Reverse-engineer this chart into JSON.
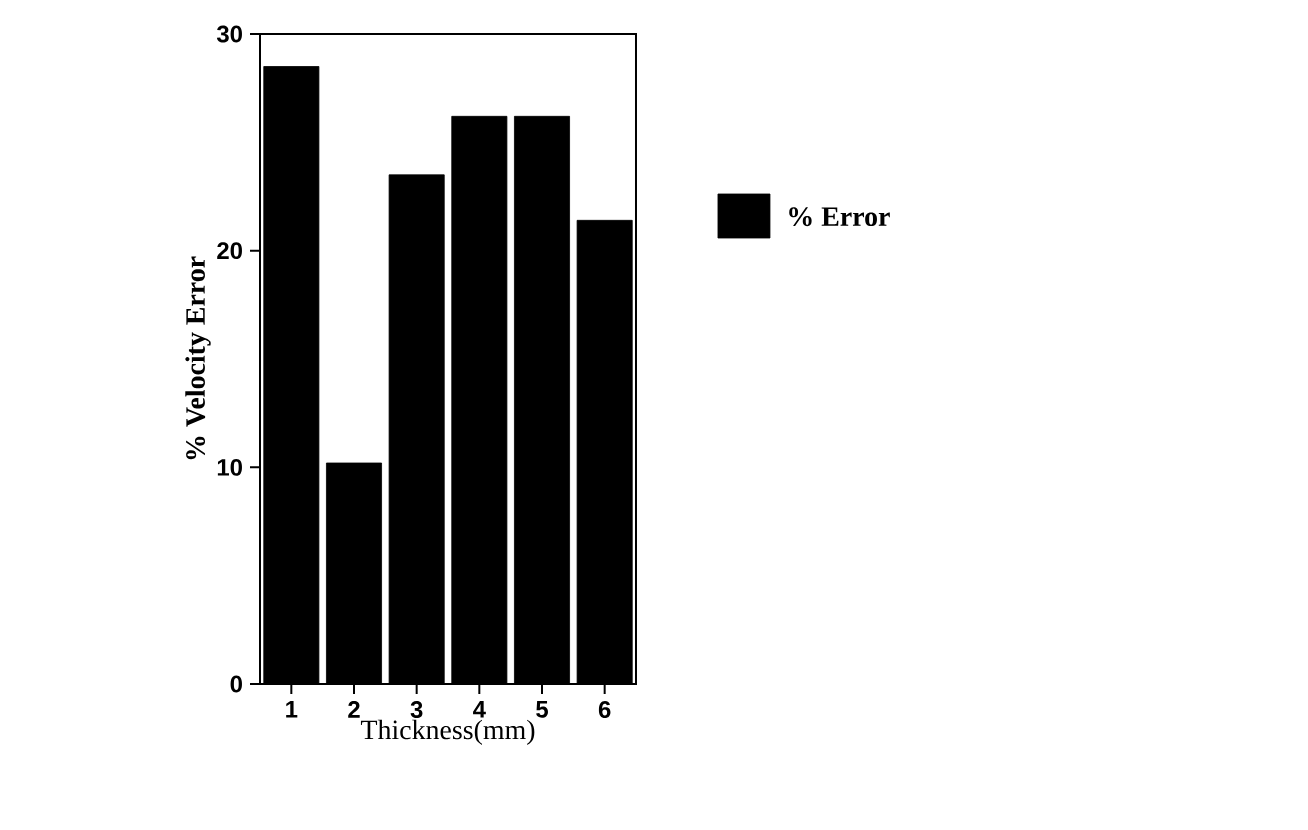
{
  "chart_data": {
    "type": "bar",
    "xlabel": "Thickness(mm)",
    "ylabel": "% Velocity Error",
    "categories": [
      "1",
      "2",
      "3",
      "4",
      "5",
      "6"
    ],
    "series": [
      {
        "name": "% Error",
        "color": "#000000",
        "values": [
          28.5,
          10.2,
          23.5,
          26.2,
          26.2,
          21.4
        ]
      }
    ],
    "ylim": [
      0,
      30
    ],
    "yticks": [
      0,
      10,
      20,
      30
    ],
    "legend": "right",
    "grid": false
  }
}
